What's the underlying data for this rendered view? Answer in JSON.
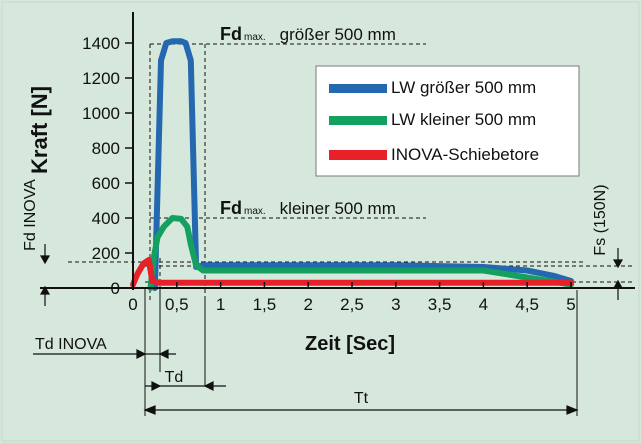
{
  "chart_data": {
    "type": "line",
    "ylabel": "Kraft [N]",
    "xlabel": "Zeit [Sec]",
    "xlim": [
      0,
      5.2
    ],
    "ylim": [
      0,
      1500
    ],
    "x_ticks": [
      "0",
      "0,5",
      "1",
      "1,5",
      "2",
      "2,5",
      "3",
      "3,5",
      "4",
      "4,5",
      "5"
    ],
    "y_ticks": [
      "0",
      "200",
      "400",
      "600",
      "800",
      "1000",
      "1200",
      "1400"
    ],
    "legend": {
      "placement": "top-right",
      "entries": [
        {
          "label": "LW größer 500 mm",
          "color": "#2468b0"
        },
        {
          "label": "LW kleiner 500 mm",
          "color": "#14a060"
        },
        {
          "label": "INOVA-Schiebetore",
          "color": "#e8202a"
        }
      ]
    },
    "series": [
      {
        "name": "LW größer 500 mm",
        "color": "#2468b0",
        "x": [
          0.25,
          0.32,
          0.38,
          0.45,
          0.55,
          0.6,
          0.66,
          0.72,
          0.8,
          1.0,
          2.0,
          3.0,
          4.0,
          4.5,
          4.8,
          5.0
        ],
        "y": [
          0,
          1300,
          1400,
          1410,
          1410,
          1400,
          1300,
          120,
          130,
          130,
          130,
          130,
          120,
          100,
          70,
          40
        ]
      },
      {
        "name": "LW kleiner 500 mm",
        "color": "#14a060",
        "x": [
          0.2,
          0.24,
          0.28,
          0.35,
          0.45,
          0.55,
          0.62,
          0.66,
          0.72,
          0.8,
          1.0,
          2.0,
          3.0,
          4.0,
          4.5,
          5.0
        ],
        "y": [
          0,
          180,
          290,
          350,
          400,
          395,
          350,
          250,
          130,
          100,
          100,
          100,
          100,
          100,
          60,
          20
        ]
      },
      {
        "name": "INOVA-Schiebetore",
        "color": "#e8202a",
        "x": [
          0,
          0.05,
          0.12,
          0.18,
          0.22,
          0.3,
          1.0,
          2.0,
          3.0,
          4.0,
          5.0
        ],
        "y": [
          20,
          80,
          140,
          160,
          40,
          30,
          30,
          30,
          30,
          30,
          30
        ]
      }
    ],
    "annotations": {
      "fdmax_big_prefix": "Fd",
      "fdmax_big_sub": "max.",
      "fdmax_big_text": "größer 500 mm",
      "fdmax_small_prefix": "Fd",
      "fdmax_small_sub": "max.",
      "fdmax_small_text": "kleiner 500 mm",
      "fd_inova": "Fd INOVA",
      "fs": "Fs (150N)",
      "td_inova": "Td INOVA",
      "td": "Td",
      "tt": "Tt"
    }
  }
}
